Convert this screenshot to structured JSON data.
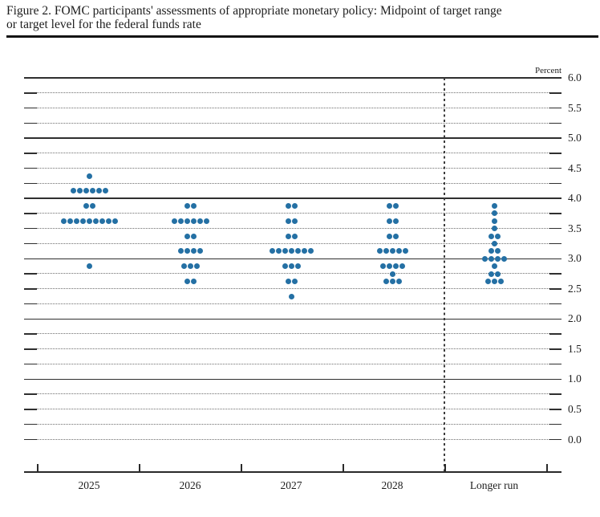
{
  "figure": {
    "title_line1": "Figure 2. FOMC participants' assessments of appropriate monetary policy: Midpoint of target range",
    "title_line2": "or target level for the federal funds rate"
  },
  "chart_data": {
    "type": "scatter",
    "title": "FOMC participants' assessments of appropriate monetary policy: Midpoint of target range or target level for the federal funds rate",
    "unit_label": "Percent",
    "y_axis": {
      "min": 0.0,
      "max": 6.0,
      "tick_step": 0.25,
      "label_step": 0.5,
      "labels": [
        "6.0",
        "5.5",
        "5.0",
        "4.5",
        "4.0",
        "3.5",
        "3.0",
        "2.5",
        "2.0",
        "1.5",
        "1.0",
        "0.5",
        "0.0"
      ],
      "solid_line_values": [
        1.0,
        2.0,
        3.0,
        4.0,
        5.0,
        6.0
      ]
    },
    "categories": [
      "2025",
      "2026",
      "2027",
      "2028",
      "Longer run"
    ],
    "separator_before_category": "Longer run",
    "dot_color": "#2470a4",
    "grid": "on",
    "series": [
      {
        "category": "2025",
        "dots": [
          {
            "rate": 4.375,
            "count": 1
          },
          {
            "rate": 4.125,
            "count": 6
          },
          {
            "rate": 3.875,
            "count": 2
          },
          {
            "rate": 3.625,
            "count": 9
          },
          {
            "rate": 2.875,
            "count": 1
          }
        ]
      },
      {
        "category": "2026",
        "dots": [
          {
            "rate": 3.875,
            "count": 2
          },
          {
            "rate": 3.625,
            "count": 6
          },
          {
            "rate": 3.375,
            "count": 2
          },
          {
            "rate": 3.125,
            "count": 4
          },
          {
            "rate": 2.875,
            "count": 3
          },
          {
            "rate": 2.625,
            "count": 2
          }
        ]
      },
      {
        "category": "2027",
        "dots": [
          {
            "rate": 3.875,
            "count": 2
          },
          {
            "rate": 3.625,
            "count": 2
          },
          {
            "rate": 3.375,
            "count": 2
          },
          {
            "rate": 3.125,
            "count": 7
          },
          {
            "rate": 2.875,
            "count": 3
          },
          {
            "rate": 2.625,
            "count": 2
          },
          {
            "rate": 2.375,
            "count": 1
          }
        ]
      },
      {
        "category": "2028",
        "dots": [
          {
            "rate": 3.875,
            "count": 2
          },
          {
            "rate": 3.625,
            "count": 2
          },
          {
            "rate": 3.375,
            "count": 2
          },
          {
            "rate": 3.125,
            "count": 5
          },
          {
            "rate": 2.875,
            "count": 4
          },
          {
            "rate": 2.75,
            "count": 1
          },
          {
            "rate": 2.625,
            "count": 3
          }
        ]
      },
      {
        "category": "Longer run",
        "dots": [
          {
            "rate": 3.875,
            "count": 1
          },
          {
            "rate": 3.75,
            "count": 1
          },
          {
            "rate": 3.625,
            "count": 1
          },
          {
            "rate": 3.5,
            "count": 1
          },
          {
            "rate": 3.375,
            "count": 2
          },
          {
            "rate": 3.25,
            "count": 1
          },
          {
            "rate": 3.125,
            "count": 2
          },
          {
            "rate": 3.0,
            "count": 4
          },
          {
            "rate": 2.875,
            "count": 1
          },
          {
            "rate": 2.75,
            "count": 2
          },
          {
            "rate": 2.625,
            "count": 3
          }
        ]
      }
    ]
  }
}
